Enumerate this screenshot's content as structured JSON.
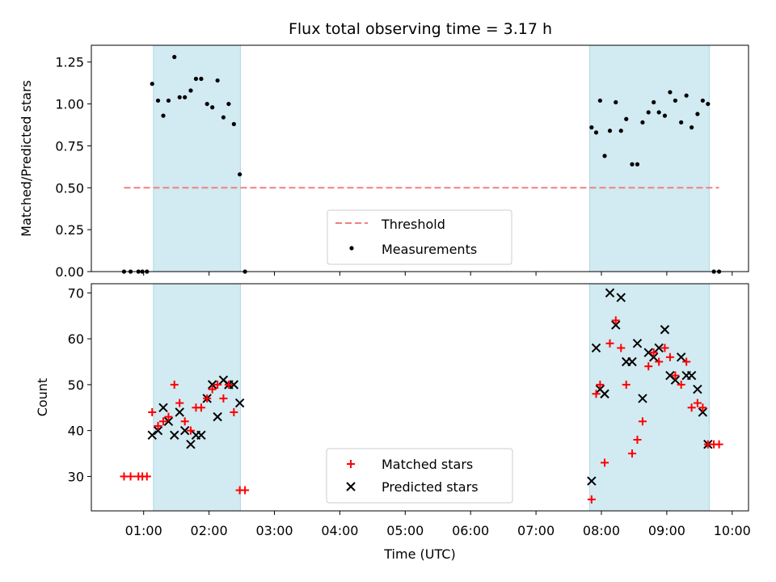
{
  "title": "Flux total observing time = 3.17 h",
  "chart_data": [
    {
      "type": "scatter",
      "ylabel": "Matched/Predicted stars",
      "ylim": [
        0,
        1.35
      ],
      "y_ticks": [
        "0.00",
        "0.25",
        "0.50",
        "0.75",
        "1.00",
        "1.25"
      ],
      "y_tick_values": [
        0,
        0.25,
        0.5,
        0.75,
        1.0,
        1.25
      ],
      "x_unit": "hours UTC",
      "xlim": [
        0.2,
        10.25
      ],
      "shaded_intervals": [
        [
          1.15,
          2.48
        ],
        [
          7.82,
          9.65
        ]
      ],
      "threshold": {
        "name": "Threshold",
        "y": 0.5,
        "x_range": [
          0.7,
          9.8
        ]
      },
      "series": [
        {
          "name": "Measurements",
          "x": [
            0.7,
            0.8,
            0.92,
            0.98,
            1.05,
            1.13,
            1.22,
            1.3,
            1.38,
            1.47,
            1.55,
            1.63,
            1.72,
            1.8,
            1.88,
            1.97,
            2.05,
            2.13,
            2.22,
            2.3,
            2.38,
            2.47,
            2.55,
            7.85,
            7.92,
            7.98,
            8.05,
            8.13,
            8.22,
            8.3,
            8.38,
            8.47,
            8.55,
            8.63,
            8.72,
            8.8,
            8.88,
            8.97,
            9.05,
            9.13,
            9.22,
            9.3,
            9.38,
            9.47,
            9.55,
            9.63,
            9.72,
            9.8
          ],
          "y": [
            0,
            0,
            0,
            0,
            0,
            1.12,
            1.02,
            0.93,
            1.02,
            1.28,
            1.04,
            1.04,
            1.08,
            1.15,
            1.15,
            1.0,
            0.98,
            1.14,
            0.92,
            1.0,
            0.88,
            0.58,
            0,
            0.86,
            0.83,
            1.02,
            0.69,
            0.84,
            1.01,
            0.84,
            0.91,
            0.64,
            0.64,
            0.89,
            0.95,
            1.01,
            0.95,
            0.93,
            1.07,
            1.02,
            0.89,
            1.05,
            0.86,
            0.94,
            1.02,
            1.0,
            0,
            0
          ]
        }
      ],
      "legend": {
        "position": "lower-center",
        "entries": [
          "Threshold",
          "Measurements"
        ]
      },
      "colors": {
        "shade": "#add8e6",
        "threshold": "#f08080",
        "points": "#000000"
      }
    },
    {
      "type": "scatter",
      "ylabel": "Count",
      "xlabel": "Time (UTC)",
      "ylim": [
        22.5,
        72
      ],
      "y_ticks": [
        "30",
        "40",
        "50",
        "60",
        "70"
      ],
      "y_tick_values": [
        30,
        40,
        50,
        60,
        70
      ],
      "x_ticks": [
        "01:00",
        "02:00",
        "03:00",
        "04:00",
        "05:00",
        "06:00",
        "07:00",
        "08:00",
        "09:00",
        "10:00"
      ],
      "x_tick_values": [
        1,
        2,
        3,
        4,
        5,
        6,
        7,
        8,
        9,
        10
      ],
      "xlim": [
        0.2,
        10.25
      ],
      "shaded_intervals": [
        [
          1.15,
          2.48
        ],
        [
          7.82,
          9.65
        ]
      ],
      "series": [
        {
          "name": "Matched stars",
          "marker": "plus",
          "x": [
            0.7,
            0.8,
            0.92,
            0.98,
            1.05,
            1.13,
            1.22,
            1.3,
            1.38,
            1.47,
            1.55,
            1.63,
            1.72,
            1.8,
            1.88,
            1.97,
            2.05,
            2.13,
            2.22,
            2.3,
            2.38,
            2.47,
            2.55,
            7.85,
            7.92,
            7.98,
            8.05,
            8.13,
            8.22,
            8.3,
            8.38,
            8.47,
            8.55,
            8.63,
            8.72,
            8.8,
            8.88,
            8.97,
            9.05,
            9.13,
            9.22,
            9.3,
            9.38,
            9.47,
            9.55,
            9.63,
            9.72,
            9.8
          ],
          "y": [
            30,
            30,
            30,
            30,
            30,
            44,
            41,
            42,
            43,
            50,
            46,
            42,
            40,
            45,
            45,
            47,
            49,
            50,
            47,
            50,
            44,
            27,
            27,
            25,
            48,
            50,
            33,
            59,
            64,
            58,
            50,
            35,
            38,
            42,
            54,
            57,
            55,
            58,
            56,
            52,
            50,
            55,
            45,
            46,
            45,
            37,
            37,
            37
          ]
        },
        {
          "name": "Predicted stars",
          "marker": "x",
          "x": [
            1.13,
            1.22,
            1.3,
            1.38,
            1.47,
            1.55,
            1.63,
            1.72,
            1.8,
            1.88,
            1.97,
            2.05,
            2.13,
            2.22,
            2.3,
            2.38,
            2.47,
            7.85,
            7.92,
            7.98,
            8.05,
            8.13,
            8.22,
            8.3,
            8.38,
            8.47,
            8.55,
            8.63,
            8.72,
            8.8,
            8.88,
            8.97,
            9.05,
            9.13,
            9.22,
            9.3,
            9.38,
            9.47,
            9.55,
            9.63
          ],
          "y": [
            39,
            40,
            45,
            42,
            39,
            44,
            40,
            37,
            39,
            39,
            47,
            50,
            43,
            51,
            50,
            50,
            46,
            29,
            58,
            49,
            48,
            70,
            63,
            69,
            55,
            55,
            59,
            47,
            57,
            56,
            58,
            62,
            52,
            51,
            56,
            52,
            52,
            49,
            44,
            37
          ]
        }
      ],
      "legend": {
        "position": "lower-center",
        "entries": [
          "Matched stars",
          "Predicted stars"
        ]
      },
      "colors": {
        "shade": "#add8e6",
        "matched": "#ff0000",
        "predicted": "#000000"
      }
    }
  ]
}
